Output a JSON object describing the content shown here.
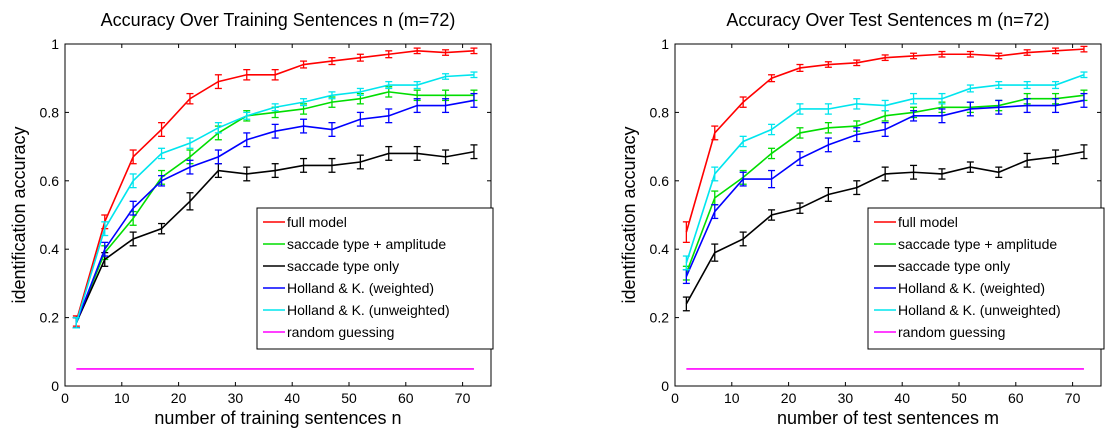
{
  "chart_data": [
    {
      "type": "line",
      "title": "Accuracy Over Training Sentences n (m=72)",
      "xlabel": "number of training sentences n",
      "ylabel": "identification accuracy",
      "xlim": [
        0,
        75
      ],
      "ylim": [
        0,
        1
      ],
      "xticks": [
        0,
        10,
        20,
        30,
        40,
        50,
        60,
        70
      ],
      "yticks": [
        0,
        0.2,
        0.4,
        0.6,
        0.8,
        1
      ],
      "ytick_labels": [
        "0",
        "0.2",
        "0.4",
        "0.6",
        "0.8",
        "1"
      ],
      "grid": false,
      "legend_position": "lower-right",
      "x": [
        2,
        7,
        12,
        17,
        22,
        27,
        32,
        37,
        42,
        47,
        52,
        57,
        62,
        67,
        72
      ],
      "series": [
        {
          "name": "full model",
          "color": "#ff0000",
          "values": [
            0.19,
            0.48,
            0.67,
            0.75,
            0.84,
            0.89,
            0.91,
            0.91,
            0.94,
            0.95,
            0.96,
            0.97,
            0.98,
            0.975,
            0.98
          ],
          "errors": [
            0.015,
            0.02,
            0.02,
            0.02,
            0.015,
            0.02,
            0.015,
            0.015,
            0.01,
            0.01,
            0.01,
            0.01,
            0.008,
            0.008,
            0.008
          ]
        },
        {
          "name": "saccade type + amplitude",
          "color": "#00dd00",
          "values": [
            0.185,
            0.39,
            0.49,
            0.61,
            0.67,
            0.74,
            0.79,
            0.8,
            0.81,
            0.83,
            0.84,
            0.86,
            0.85,
            0.85,
            0.85
          ],
          "errors": [
            0.015,
            0.02,
            0.02,
            0.02,
            0.02,
            0.02,
            0.015,
            0.015,
            0.015,
            0.015,
            0.015,
            0.015,
            0.015,
            0.015,
            0.015
          ]
        },
        {
          "name": "saccade type only",
          "color": "#000000",
          "values": [
            0.185,
            0.37,
            0.43,
            0.46,
            0.54,
            0.63,
            0.62,
            0.63,
            0.645,
            0.645,
            0.655,
            0.68,
            0.68,
            0.67,
            0.685
          ],
          "errors": [
            0.015,
            0.02,
            0.02,
            0.015,
            0.025,
            0.02,
            0.02,
            0.02,
            0.02,
            0.02,
            0.02,
            0.02,
            0.02,
            0.02,
            0.02
          ]
        },
        {
          "name": "Holland & K. (weighted)",
          "color": "#0000ff",
          "values": [
            0.185,
            0.4,
            0.52,
            0.6,
            0.64,
            0.67,
            0.72,
            0.745,
            0.76,
            0.75,
            0.78,
            0.79,
            0.82,
            0.82,
            0.835
          ],
          "errors": [
            0.015,
            0.02,
            0.02,
            0.015,
            0.02,
            0.02,
            0.02,
            0.02,
            0.02,
            0.02,
            0.02,
            0.02,
            0.02,
            0.02,
            0.02
          ]
        },
        {
          "name": "Holland & K. (unweighted)",
          "color": "#00e5ee",
          "values": [
            0.185,
            0.46,
            0.6,
            0.68,
            0.71,
            0.755,
            0.79,
            0.815,
            0.83,
            0.85,
            0.86,
            0.88,
            0.88,
            0.905,
            0.91
          ],
          "errors": [
            0.015,
            0.02,
            0.02,
            0.015,
            0.015,
            0.015,
            0.01,
            0.01,
            0.01,
            0.01,
            0.01,
            0.01,
            0.01,
            0.008,
            0.008
          ]
        },
        {
          "name": "random guessing",
          "color": "#ff00ff",
          "values": [
            0.05,
            0.05,
            0.05,
            0.05,
            0.05,
            0.05,
            0.05,
            0.05,
            0.05,
            0.05,
            0.05,
            0.05,
            0.05,
            0.05,
            0.05
          ],
          "errors": null
        }
      ]
    },
    {
      "type": "line",
      "title": "Accuracy Over Test Sentences m (n=72)",
      "xlabel": "number of test sentences m",
      "ylabel": "identification accuracy",
      "xlim": [
        0,
        75
      ],
      "ylim": [
        0,
        1
      ],
      "xticks": [
        0,
        10,
        20,
        30,
        40,
        50,
        60,
        70
      ],
      "yticks": [
        0,
        0.2,
        0.4,
        0.6,
        0.8,
        1
      ],
      "ytick_labels": [
        "0",
        "0.2",
        "0.4",
        "0.6",
        "0.8",
        "1"
      ],
      "grid": false,
      "legend_position": "lower-right",
      "x": [
        2,
        7,
        12,
        17,
        22,
        27,
        32,
        37,
        42,
        47,
        52,
        57,
        62,
        67,
        72
      ],
      "series": [
        {
          "name": "full model",
          "color": "#ff0000",
          "values": [
            0.45,
            0.74,
            0.83,
            0.9,
            0.93,
            0.94,
            0.945,
            0.96,
            0.965,
            0.97,
            0.97,
            0.965,
            0.975,
            0.98,
            0.985
          ],
          "errors": [
            0.03,
            0.02,
            0.015,
            0.01,
            0.01,
            0.008,
            0.008,
            0.008,
            0.008,
            0.008,
            0.008,
            0.008,
            0.008,
            0.008,
            0.008
          ]
        },
        {
          "name": "saccade type + amplitude",
          "color": "#00dd00",
          "values": [
            0.33,
            0.55,
            0.61,
            0.68,
            0.74,
            0.755,
            0.76,
            0.79,
            0.8,
            0.815,
            0.815,
            0.82,
            0.84,
            0.84,
            0.85
          ],
          "errors": [
            0.02,
            0.02,
            0.02,
            0.015,
            0.015,
            0.015,
            0.015,
            0.015,
            0.015,
            0.015,
            0.015,
            0.015,
            0.015,
            0.015,
            0.015
          ]
        },
        {
          "name": "saccade type only",
          "color": "#000000",
          "values": [
            0.24,
            0.39,
            0.43,
            0.5,
            0.52,
            0.56,
            0.58,
            0.62,
            0.625,
            0.62,
            0.64,
            0.625,
            0.66,
            0.67,
            0.685
          ],
          "errors": [
            0.02,
            0.025,
            0.02,
            0.015,
            0.015,
            0.02,
            0.02,
            0.02,
            0.02,
            0.015,
            0.015,
            0.015,
            0.02,
            0.02,
            0.02
          ]
        },
        {
          "name": "Holland & K. (weighted)",
          "color": "#0000ff",
          "values": [
            0.32,
            0.51,
            0.605,
            0.605,
            0.665,
            0.705,
            0.735,
            0.75,
            0.79,
            0.79,
            0.81,
            0.815,
            0.82,
            0.82,
            0.835
          ],
          "errors": [
            0.02,
            0.02,
            0.02,
            0.025,
            0.02,
            0.02,
            0.02,
            0.02,
            0.015,
            0.02,
            0.02,
            0.02,
            0.02,
            0.02,
            0.02
          ]
        },
        {
          "name": "Holland & K. (unweighted)",
          "color": "#00e5ee",
          "values": [
            0.36,
            0.62,
            0.715,
            0.75,
            0.81,
            0.81,
            0.825,
            0.82,
            0.84,
            0.84,
            0.87,
            0.88,
            0.88,
            0.88,
            0.91
          ],
          "errors": [
            0.02,
            0.02,
            0.015,
            0.015,
            0.015,
            0.015,
            0.015,
            0.015,
            0.015,
            0.015,
            0.01,
            0.01,
            0.01,
            0.01,
            0.008
          ]
        },
        {
          "name": "random guessing",
          "color": "#ff00ff",
          "values": [
            0.05,
            0.05,
            0.05,
            0.05,
            0.05,
            0.05,
            0.05,
            0.05,
            0.05,
            0.05,
            0.05,
            0.05,
            0.05,
            0.05,
            0.05
          ],
          "errors": null
        }
      ]
    }
  ]
}
